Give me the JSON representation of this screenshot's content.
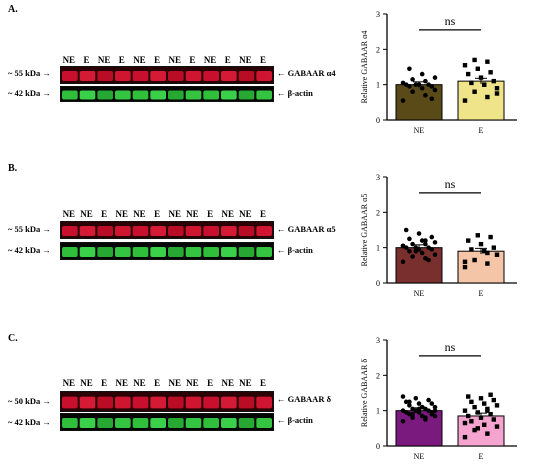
{
  "panels": [
    {
      "letter": "A.",
      "lanes": [
        "NE",
        "E",
        "NE",
        "E",
        "NE",
        "E",
        "NE",
        "E",
        "NE",
        "E",
        "NE",
        "E"
      ],
      "target_label": "~ 55 kDa →",
      "target_name": "← GABAAR α4",
      "actin_label": "~ 42 kDa →",
      "actin_name": "← β-actin"
    },
    {
      "letter": "B.",
      "lanes": [
        "NE",
        "NE",
        "E",
        "NE",
        "NE",
        "E",
        "NE",
        "NE",
        "E",
        "NE",
        "NE",
        "E"
      ],
      "target_label": "~ 55 kDa →",
      "target_name": "← GABAAR α5",
      "actin_label": "~ 42 kDa →",
      "actin_name": "← β-actin"
    },
    {
      "letter": "C.",
      "lanes": [
        "NE",
        "NE",
        "E",
        "NE",
        "NE",
        "E",
        "NE",
        "NE",
        "E",
        "NE",
        "NE",
        "E"
      ],
      "target_label": "~ 50 kDa →",
      "target_name": "← GABAAR δ",
      "actin_label": "~ 42 kDa →",
      "actin_name": "← β-actin"
    }
  ],
  "chart_data": [
    {
      "type": "bar",
      "categories": [
        "NE",
        "E"
      ],
      "values": [
        1.0,
        1.1
      ],
      "ylabel": "Relative GABAAR α4",
      "ylim": [
        0,
        3
      ],
      "yticks": [
        0,
        1,
        2,
        3
      ],
      "annotation": "ns",
      "bar_colors": [
        "#5a4a17",
        "#efe48a"
      ],
      "points": [
        [
          0.55,
          0.7,
          0.8,
          0.85,
          0.9,
          0.95,
          0.95,
          1.0,
          1.0,
          1.0,
          1.0,
          1.05,
          1.1,
          1.15,
          1.2,
          1.3,
          1.45,
          0.6
        ],
        [
          0.55,
          0.65,
          0.8,
          0.9,
          1.0,
          1.05,
          1.1,
          1.2,
          1.3,
          1.35,
          1.45,
          1.55,
          1.65,
          1.7,
          0.75,
          1.0
        ]
      ]
    },
    {
      "type": "bar",
      "categories": [
        "NE",
        "E"
      ],
      "values": [
        1.0,
        0.9
      ],
      "ylabel": "Relative GABAAR α5",
      "ylim": [
        0,
        3
      ],
      "yticks": [
        0,
        1,
        2,
        3
      ],
      "annotation": "ns",
      "bar_colors": [
        "#7a2f2f",
        "#f4c5a6"
      ],
      "points": [
        [
          0.6,
          0.7,
          0.75,
          0.8,
          0.85,
          0.9,
          0.95,
          0.95,
          1.0,
          1.0,
          1.0,
          1.05,
          1.1,
          1.1,
          1.15,
          1.2,
          1.25,
          1.3,
          1.4,
          1.5,
          0.65,
          0.9,
          1.05,
          1.2
        ],
        [
          0.45,
          0.55,
          0.65,
          0.8,
          0.9,
          0.95,
          1.0,
          1.1,
          1.2,
          1.3,
          1.35,
          0.6,
          0.85
        ]
      ]
    },
    {
      "type": "bar",
      "categories": [
        "NE",
        "E"
      ],
      "values": [
        1.0,
        0.85
      ],
      "ylabel": "Relative GABAAR δ",
      "ylim": [
        0,
        3
      ],
      "yticks": [
        0,
        1,
        2,
        3
      ],
      "annotation": "ns",
      "bar_colors": [
        "#7b1a7e",
        "#f5a3cf"
      ],
      "points": [
        [
          0.7,
          0.75,
          0.8,
          0.85,
          0.85,
          0.9,
          0.9,
          0.95,
          0.95,
          1.0,
          1.0,
          1.0,
          1.05,
          1.05,
          1.1,
          1.1,
          1.15,
          1.2,
          1.2,
          1.25,
          1.3,
          1.35,
          1.4,
          0.8,
          0.9,
          1.0,
          1.1,
          1.25,
          0.95,
          1.05
        ],
        [
          0.25,
          0.35,
          0.45,
          0.55,
          0.6,
          0.7,
          0.75,
          0.8,
          0.85,
          0.9,
          0.95,
          1.0,
          1.05,
          1.1,
          1.15,
          1.2,
          1.25,
          1.3,
          1.35,
          1.4,
          1.45,
          0.5,
          0.65,
          1.0
        ]
      ]
    }
  ]
}
